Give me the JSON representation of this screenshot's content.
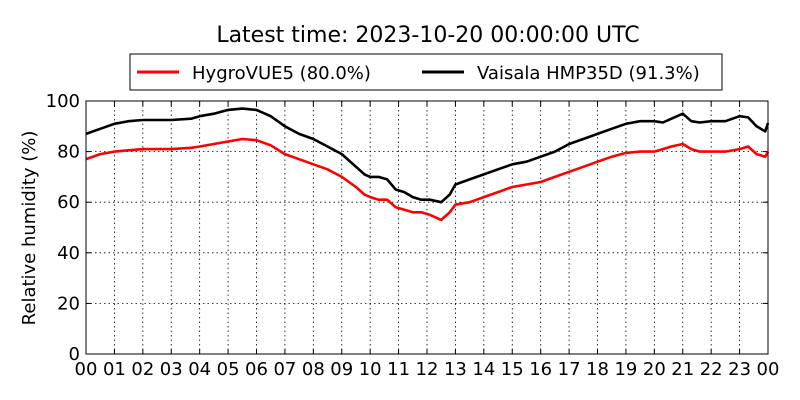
{
  "chart_data": {
    "type": "line",
    "title": "Latest time: 2023-10-20 00:00:00 UTC",
    "xlabel": "",
    "ylabel": "Relative humidity (%)",
    "xlim": [
      0,
      24
    ],
    "ylim": [
      0,
      100
    ],
    "x_tick_labels": [
      "00",
      "01",
      "02",
      "03",
      "04",
      "05",
      "06",
      "07",
      "08",
      "09",
      "10",
      "11",
      "12",
      "13",
      "14",
      "15",
      "16",
      "17",
      "18",
      "19",
      "20",
      "21",
      "22",
      "23",
      "00"
    ],
    "y_ticks": [
      0,
      20,
      40,
      60,
      80,
      100
    ],
    "grid": true,
    "legend": "top",
    "series": [
      {
        "name": "HygroVUE5 (80.0%)",
        "color": "#ff0000",
        "points": [
          [
            0.0,
            77
          ],
          [
            0.5,
            79
          ],
          [
            1.0,
            80
          ],
          [
            1.5,
            80.5
          ],
          [
            2.0,
            81
          ],
          [
            3.0,
            81
          ],
          [
            3.7,
            81.5
          ],
          [
            4.0,
            82
          ],
          [
            4.5,
            83
          ],
          [
            5.0,
            84
          ],
          [
            5.5,
            85
          ],
          [
            6.0,
            84.5
          ],
          [
            6.5,
            82.5
          ],
          [
            7.0,
            79
          ],
          [
            7.5,
            77
          ],
          [
            8.0,
            75
          ],
          [
            8.5,
            73
          ],
          [
            9.0,
            70
          ],
          [
            9.5,
            66
          ],
          [
            9.8,
            63
          ],
          [
            10.0,
            62
          ],
          [
            10.3,
            61
          ],
          [
            10.6,
            61
          ],
          [
            10.9,
            58
          ],
          [
            11.2,
            57
          ],
          [
            11.5,
            56
          ],
          [
            11.8,
            56
          ],
          [
            12.1,
            55
          ],
          [
            12.5,
            53
          ],
          [
            12.8,
            56
          ],
          [
            13.0,
            59
          ],
          [
            13.5,
            60
          ],
          [
            14.0,
            62
          ],
          [
            14.5,
            64
          ],
          [
            15.0,
            66
          ],
          [
            15.5,
            67
          ],
          [
            16.0,
            68
          ],
          [
            16.5,
            70
          ],
          [
            17.0,
            72
          ],
          [
            17.5,
            74
          ],
          [
            18.0,
            76
          ],
          [
            18.5,
            78
          ],
          [
            19.0,
            79.5
          ],
          [
            19.5,
            80
          ],
          [
            20.0,
            80
          ],
          [
            20.3,
            81
          ],
          [
            20.6,
            82
          ],
          [
            21.0,
            83
          ],
          [
            21.3,
            81
          ],
          [
            21.6,
            80
          ],
          [
            22.0,
            80
          ],
          [
            22.5,
            80
          ],
          [
            23.0,
            81
          ],
          [
            23.3,
            82
          ],
          [
            23.6,
            79
          ],
          [
            23.9,
            78
          ],
          [
            24.0,
            80
          ]
        ]
      },
      {
        "name": "Vaisala HMP35D (91.3%)",
        "color": "#000000",
        "points": [
          [
            0.0,
            87
          ],
          [
            0.5,
            89
          ],
          [
            1.0,
            91
          ],
          [
            1.5,
            92
          ],
          [
            2.0,
            92.5
          ],
          [
            3.0,
            92.5
          ],
          [
            3.7,
            93
          ],
          [
            4.0,
            94
          ],
          [
            4.5,
            95
          ],
          [
            5.0,
            96.5
          ],
          [
            5.5,
            97
          ],
          [
            6.0,
            96.5
          ],
          [
            6.5,
            94
          ],
          [
            7.0,
            90
          ],
          [
            7.5,
            87
          ],
          [
            8.0,
            85
          ],
          [
            8.5,
            82
          ],
          [
            9.0,
            79
          ],
          [
            9.5,
            74
          ],
          [
            9.8,
            71
          ],
          [
            10.0,
            70
          ],
          [
            10.3,
            70
          ],
          [
            10.6,
            69
          ],
          [
            10.9,
            65
          ],
          [
            11.2,
            64
          ],
          [
            11.5,
            62
          ],
          [
            11.8,
            61
          ],
          [
            12.1,
            61
          ],
          [
            12.5,
            60
          ],
          [
            12.8,
            63
          ],
          [
            13.0,
            67
          ],
          [
            13.5,
            69
          ],
          [
            14.0,
            71
          ],
          [
            14.5,
            73
          ],
          [
            15.0,
            75
          ],
          [
            15.5,
            76
          ],
          [
            16.0,
            78
          ],
          [
            16.5,
            80
          ],
          [
            17.0,
            83
          ],
          [
            17.5,
            85
          ],
          [
            18.0,
            87
          ],
          [
            18.5,
            89
          ],
          [
            19.0,
            91
          ],
          [
            19.5,
            92
          ],
          [
            20.0,
            92
          ],
          [
            20.3,
            91.5
          ],
          [
            20.6,
            93
          ],
          [
            21.0,
            95
          ],
          [
            21.3,
            92
          ],
          [
            21.6,
            91.5
          ],
          [
            22.0,
            92
          ],
          [
            22.5,
            92
          ],
          [
            23.0,
            94
          ],
          [
            23.3,
            93.5
          ],
          [
            23.6,
            90
          ],
          [
            23.9,
            88
          ],
          [
            24.0,
            91.3
          ]
        ]
      }
    ]
  }
}
